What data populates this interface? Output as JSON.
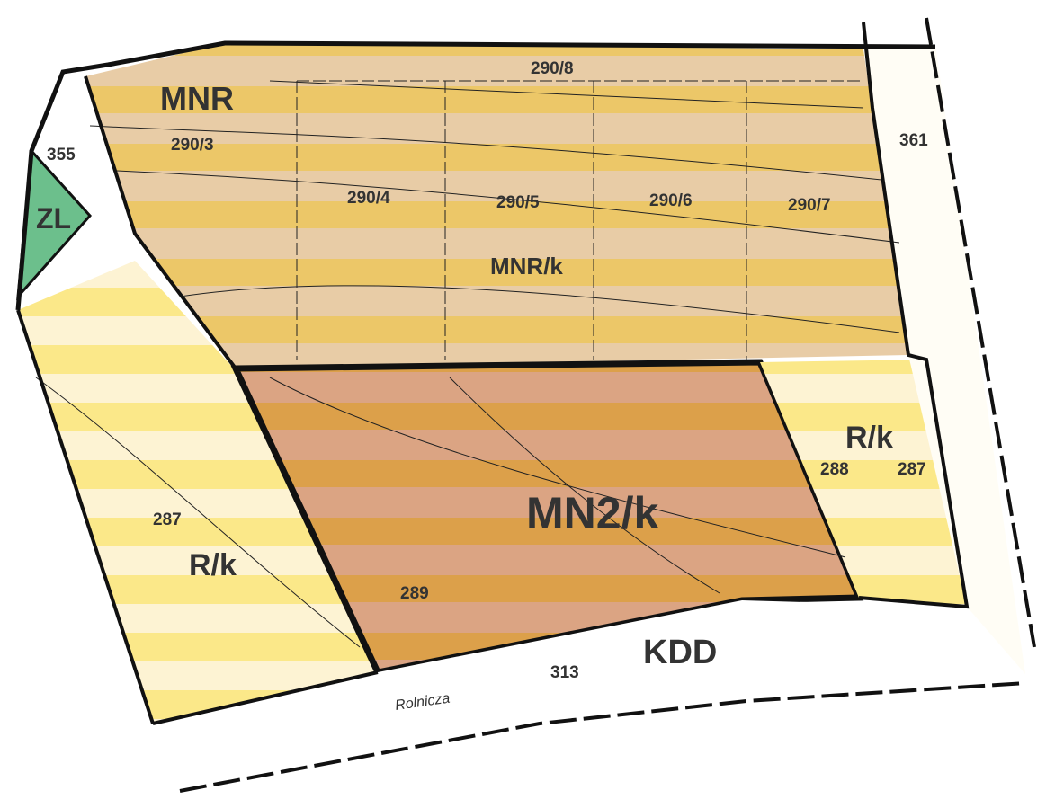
{
  "zones": {
    "mnr": "MNR",
    "mnr_k": "MNR/k",
    "mn2_k": "MN2/k",
    "r_k_right": "R/k",
    "r_k_left": "R/k",
    "zl": "ZL",
    "kdd": "KDD"
  },
  "parcels": {
    "p290_8": "290/8",
    "p290_3": "290/3",
    "p290_4": "290/4",
    "p290_5": "290/5",
    "p290_6": "290/6",
    "p290_7": "290/7",
    "p355": "355",
    "p361": "361",
    "p288": "288",
    "p287_right": "287",
    "p287_left": "287",
    "p289": "289",
    "p313": "313"
  },
  "street": "Rolnicza"
}
